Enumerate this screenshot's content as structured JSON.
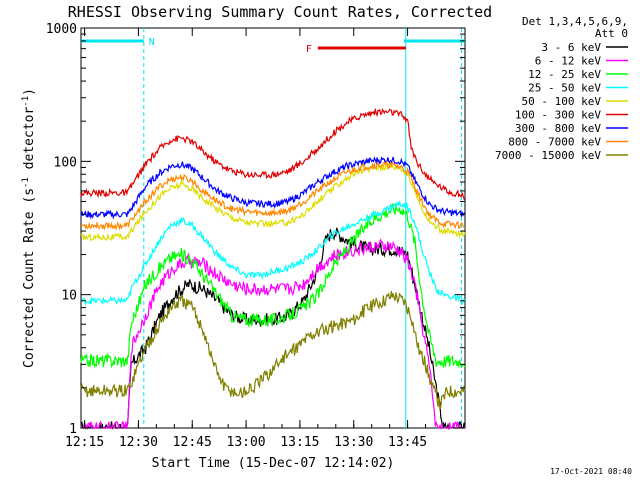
{
  "chart_data": {
    "type": "line",
    "title": "RHESSI Observing Summary Count Rates, Corrected",
    "xlabel": "Start Time (15-Dec-07 12:14:02)",
    "ylabel": "Corrected Count Rate (s-1 detector-1)",
    "ylabel_main": "Corrected Count Rate (s",
    "ylabel_sup1": "-1",
    "ylabel_mid": " detector",
    "ylabel_sup2": "-1",
    "ylabel_end": ")",
    "x_ticks": [
      "12:15",
      "12:30",
      "12:45",
      "13:00",
      "13:15",
      "13:30",
      "13:45"
    ],
    "x_minutes_range": [
      0,
      107
    ],
    "y_scale": "log",
    "ylim": [
      1,
      1000
    ],
    "y_ticks": [
      "1",
      "10",
      "100",
      "1000"
    ],
    "legend_header": [
      "Det 1,3,4,5,6,9,",
      "Att 0"
    ],
    "legend_placement": "right",
    "timestamp": "17-Oct-2021 08:40",
    "markers": [
      {
        "label": "N",
        "type": "night",
        "segments": [
          [
            0,
            17.5
          ],
          [
            90,
            107
          ]
        ],
        "color": "#00e5ee"
      },
      {
        "label": "F",
        "type": "flare",
        "segments": [
          [
            66,
            90.5
          ]
        ],
        "color": "#e00000"
      }
    ],
    "vlines": [
      17.5,
      90.5,
      106
    ],
    "series": [
      {
        "name": "3 - 6 keV",
        "color": "#000000",
        "values": [
          [
            0,
            1
          ],
          [
            13,
            1
          ],
          [
            14,
            3
          ],
          [
            18,
            4
          ],
          [
            22,
            7
          ],
          [
            26,
            10
          ],
          [
            30,
            12
          ],
          [
            34,
            11
          ],
          [
            38,
            9
          ],
          [
            42,
            7
          ],
          [
            46,
            6.5
          ],
          [
            50,
            6.5
          ],
          [
            54,
            6.5
          ],
          [
            58,
            7
          ],
          [
            62,
            9
          ],
          [
            66,
            15
          ],
          [
            68,
            25
          ],
          [
            70,
            30
          ],
          [
            72,
            28
          ],
          [
            76,
            24
          ],
          [
            80,
            22
          ],
          [
            84,
            22
          ],
          [
            88,
            22
          ],
          [
            91,
            20
          ],
          [
            93,
            12
          ],
          [
            95,
            7
          ],
          [
            97,
            4
          ],
          [
            99,
            2
          ],
          [
            101,
            1
          ],
          [
            107,
            1
          ]
        ]
      },
      {
        "name": "6 - 12 keV",
        "color": "#ff00ff",
        "values": [
          [
            0,
            1
          ],
          [
            13,
            1
          ],
          [
            14,
            4
          ],
          [
            18,
            7
          ],
          [
            22,
            12
          ],
          [
            26,
            16
          ],
          [
            30,
            18
          ],
          [
            34,
            17
          ],
          [
            38,
            14
          ],
          [
            42,
            12
          ],
          [
            46,
            11
          ],
          [
            50,
            11
          ],
          [
            54,
            11
          ],
          [
            58,
            11
          ],
          [
            62,
            12
          ],
          [
            64,
            14
          ],
          [
            66,
            16
          ],
          [
            70,
            19
          ],
          [
            74,
            21
          ],
          [
            78,
            22
          ],
          [
            82,
            23
          ],
          [
            86,
            23
          ],
          [
            89,
            21
          ],
          [
            91,
            18
          ],
          [
            93,
            12
          ],
          [
            95,
            6
          ],
          [
            97,
            3
          ],
          [
            99,
            1
          ],
          [
            107,
            1
          ]
        ]
      },
      {
        "name": "12 - 25 keV",
        "color": "#00ff00",
        "values": [
          [
            0,
            3.2
          ],
          [
            13,
            3.2
          ],
          [
            14,
            6
          ],
          [
            18,
            12
          ],
          [
            22,
            16
          ],
          [
            25,
            19
          ],
          [
            28,
            20
          ],
          [
            31,
            18
          ],
          [
            34,
            14
          ],
          [
            38,
            10
          ],
          [
            42,
            7
          ],
          [
            46,
            6.5
          ],
          [
            50,
            6.5
          ],
          [
            54,
            6.5
          ],
          [
            58,
            7
          ],
          [
            62,
            8
          ],
          [
            66,
            10
          ],
          [
            70,
            16
          ],
          [
            74,
            22
          ],
          [
            78,
            30
          ],
          [
            82,
            38
          ],
          [
            86,
            43
          ],
          [
            89,
            45
          ],
          [
            91,
            40
          ],
          [
            93,
            25
          ],
          [
            95,
            10
          ],
          [
            97,
            5
          ],
          [
            99,
            3.2
          ],
          [
            107,
            3.2
          ]
        ]
      },
      {
        "name": "25 - 50 keV",
        "color": "#00ffff",
        "values": [
          [
            0,
            9
          ],
          [
            13,
            9
          ],
          [
            14,
            11
          ],
          [
            18,
            17
          ],
          [
            22,
            26
          ],
          [
            25,
            33
          ],
          [
            28,
            36
          ],
          [
            31,
            33
          ],
          [
            34,
            27
          ],
          [
            38,
            20
          ],
          [
            42,
            16
          ],
          [
            46,
            14
          ],
          [
            50,
            14
          ],
          [
            54,
            15
          ],
          [
            58,
            16
          ],
          [
            62,
            18
          ],
          [
            66,
            22
          ],
          [
            70,
            28
          ],
          [
            74,
            32
          ],
          [
            78,
            36
          ],
          [
            82,
            40
          ],
          [
            86,
            45
          ],
          [
            89,
            48
          ],
          [
            91,
            46
          ],
          [
            93,
            35
          ],
          [
            95,
            22
          ],
          [
            97,
            15
          ],
          [
            99,
            11
          ],
          [
            101,
            10
          ],
          [
            107,
            9
          ]
        ]
      },
      {
        "name": "50 - 100 keV",
        "color": "#dddd00",
        "values": [
          [
            0,
            27
          ],
          [
            13,
            27
          ],
          [
            14,
            30
          ],
          [
            18,
            42
          ],
          [
            22,
            55
          ],
          [
            25,
            63
          ],
          [
            28,
            67
          ],
          [
            31,
            62
          ],
          [
            34,
            53
          ],
          [
            38,
            44
          ],
          [
            42,
            38
          ],
          [
            46,
            35
          ],
          [
            50,
            34
          ],
          [
            54,
            34
          ],
          [
            58,
            35
          ],
          [
            62,
            40
          ],
          [
            66,
            50
          ],
          [
            70,
            62
          ],
          [
            74,
            75
          ],
          [
            78,
            85
          ],
          [
            82,
            90
          ],
          [
            86,
            92
          ],
          [
            89,
            90
          ],
          [
            91,
            80
          ],
          [
            93,
            60
          ],
          [
            95,
            45
          ],
          [
            97,
            36
          ],
          [
            99,
            32
          ],
          [
            101,
            30
          ],
          [
            107,
            28
          ]
        ]
      },
      {
        "name": "100 - 300 keV",
        "color": "#e00000",
        "values": [
          [
            0,
            58
          ],
          [
            13,
            58
          ],
          [
            14,
            65
          ],
          [
            18,
            95
          ],
          [
            22,
            125
          ],
          [
            25,
            145
          ],
          [
            28,
            150
          ],
          [
            31,
            140
          ],
          [
            34,
            118
          ],
          [
            38,
            97
          ],
          [
            42,
            85
          ],
          [
            46,
            80
          ],
          [
            50,
            79
          ],
          [
            54,
            80
          ],
          [
            58,
            85
          ],
          [
            62,
            100
          ],
          [
            66,
            125
          ],
          [
            70,
            160
          ],
          [
            74,
            195
          ],
          [
            78,
            220
          ],
          [
            82,
            235
          ],
          [
            86,
            235
          ],
          [
            89,
            225
          ],
          [
            91,
            205
          ],
          [
            92,
            125
          ],
          [
            94,
            95
          ],
          [
            96,
            80
          ],
          [
            98,
            70
          ],
          [
            100,
            65
          ],
          [
            102,
            60
          ],
          [
            107,
            55
          ]
        ]
      },
      {
        "name": "300 - 800 keV",
        "color": "#0000ff",
        "values": [
          [
            0,
            40
          ],
          [
            13,
            40
          ],
          [
            14,
            44
          ],
          [
            18,
            65
          ],
          [
            22,
            82
          ],
          [
            25,
            92
          ],
          [
            28,
            95
          ],
          [
            31,
            88
          ],
          [
            34,
            75
          ],
          [
            38,
            60
          ],
          [
            42,
            53
          ],
          [
            46,
            49
          ],
          [
            50,
            48
          ],
          [
            54,
            48
          ],
          [
            58,
            50
          ],
          [
            62,
            58
          ],
          [
            66,
            70
          ],
          [
            70,
            82
          ],
          [
            74,
            92
          ],
          [
            78,
            98
          ],
          [
            82,
            102
          ],
          [
            86,
            103
          ],
          [
            89,
            100
          ],
          [
            91,
            92
          ],
          [
            93,
            72
          ],
          [
            95,
            58
          ],
          [
            97,
            48
          ],
          [
            99,
            44
          ],
          [
            101,
            42
          ],
          [
            107,
            40
          ]
        ]
      },
      {
        "name": "800 - 7000 keV",
        "color": "#ff8800",
        "values": [
          [
            0,
            33
          ],
          [
            13,
            33
          ],
          [
            14,
            36
          ],
          [
            18,
            50
          ],
          [
            22,
            65
          ],
          [
            25,
            73
          ],
          [
            28,
            76
          ],
          [
            31,
            71
          ],
          [
            34,
            60
          ],
          [
            38,
            50
          ],
          [
            42,
            44
          ],
          [
            46,
            42
          ],
          [
            50,
            41
          ],
          [
            54,
            41
          ],
          [
            58,
            43
          ],
          [
            62,
            50
          ],
          [
            66,
            60
          ],
          [
            70,
            72
          ],
          [
            74,
            83
          ],
          [
            78,
            90
          ],
          [
            82,
            94
          ],
          [
            86,
            94
          ],
          [
            89,
            91
          ],
          [
            91,
            84
          ],
          [
            93,
            65
          ],
          [
            95,
            50
          ],
          [
            97,
            40
          ],
          [
            99,
            36
          ],
          [
            101,
            34
          ],
          [
            107,
            33
          ]
        ]
      },
      {
        "name": "7000 - 15000 keV",
        "color": "#808000",
        "values": [
          [
            0,
            1.9
          ],
          [
            13,
            1.9
          ],
          [
            14,
            2.2
          ],
          [
            18,
            4
          ],
          [
            22,
            6
          ],
          [
            25,
            8
          ],
          [
            28,
            9
          ],
          [
            31,
            8
          ],
          [
            34,
            5.5
          ],
          [
            37,
            3
          ],
          [
            40,
            2
          ],
          [
            44,
            1.8
          ],
          [
            48,
            2
          ],
          [
            52,
            2.5
          ],
          [
            56,
            3.3
          ],
          [
            60,
            4
          ],
          [
            64,
            5
          ],
          [
            68,
            5.5
          ],
          [
            72,
            6
          ],
          [
            76,
            6.5
          ],
          [
            80,
            8
          ],
          [
            84,
            9
          ],
          [
            87,
            10
          ],
          [
            90,
            9
          ],
          [
            92,
            7
          ],
          [
            94,
            4
          ],
          [
            96,
            3
          ],
          [
            98,
            2
          ],
          [
            100,
            1.5
          ],
          [
            102,
            1.9
          ],
          [
            107,
            1.9
          ]
        ]
      }
    ]
  }
}
